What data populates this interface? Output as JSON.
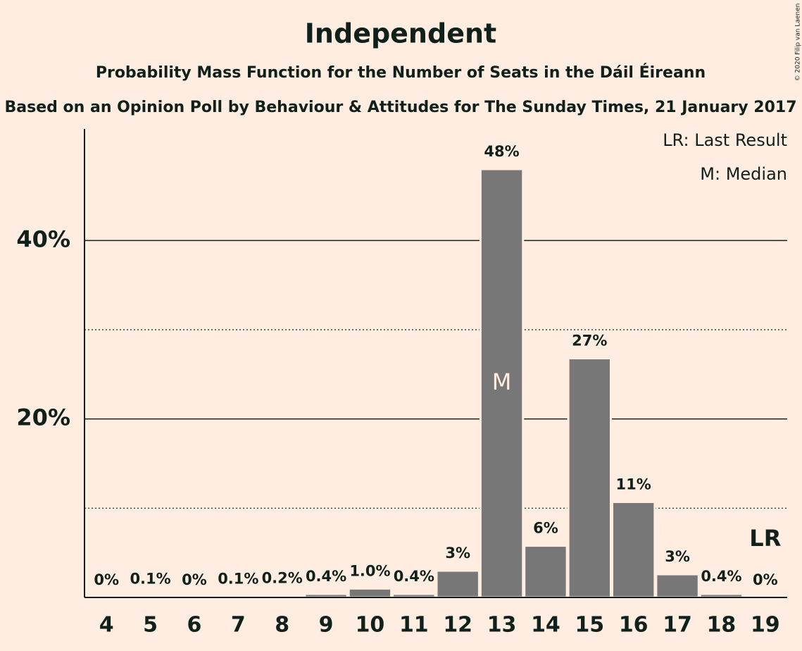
{
  "chart_data": {
    "type": "bar",
    "title": "Independent",
    "subtitle": "Probability Mass Function for the Number of Seats in the Dáil Éireann",
    "source": "Based on an Opinion Poll by Behaviour & Attitudes for The Sunday Times, 21 January 2017",
    "copyright": "© 2020 Filip van Laenen",
    "legend": [
      "LR: Last Result",
      "M: Median"
    ],
    "categories": [
      "4",
      "5",
      "6",
      "7",
      "8",
      "9",
      "10",
      "11",
      "12",
      "13",
      "14",
      "15",
      "16",
      "17",
      "18",
      "19"
    ],
    "values": [
      0,
      0.1,
      0,
      0.1,
      0.2,
      0.4,
      1.0,
      0.4,
      3,
      48,
      5.8,
      26.8,
      10.7,
      2.6,
      0.4,
      0
    ],
    "value_labels": [
      "0%",
      "0.1%",
      "0%",
      "0.1%",
      "0.2%",
      "0.4%",
      "1.0%",
      "0.4%",
      "3%",
      "48%",
      "6%",
      "27%",
      "11%",
      "3%",
      "0.4%",
      "0%"
    ],
    "color": "#777777",
    "median": {
      "label": "M",
      "category": "13"
    },
    "last_result": {
      "label": "LR",
      "category": "19"
    },
    "ylim": [
      0,
      52.5
    ],
    "yticks": [
      {
        "value": 20,
        "label": "20%"
      },
      {
        "value": 40,
        "label": "40%"
      }
    ],
    "minor_yticks": [
      10,
      30
    ],
    "grid": true
  }
}
